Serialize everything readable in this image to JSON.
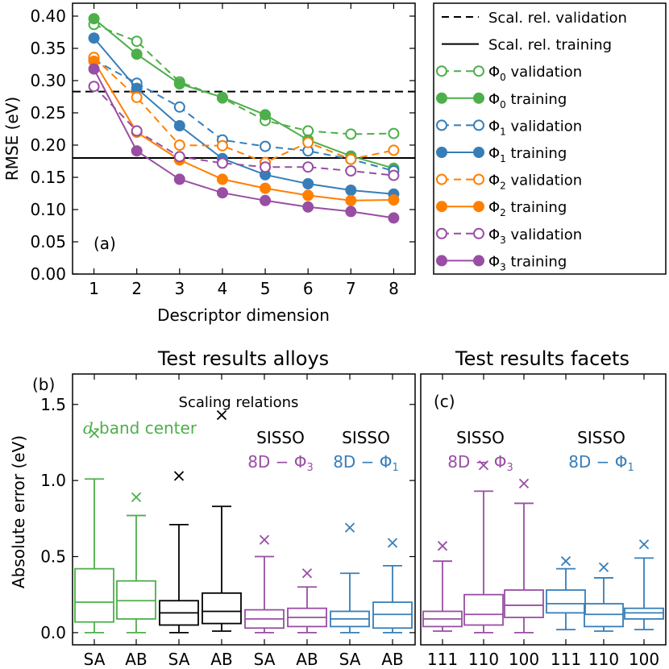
{
  "chart_data": [
    {
      "id": "a",
      "type": "line",
      "panel_label": "(a)",
      "xlabel": "Descriptor dimension",
      "ylabel": "RMSE (eV)",
      "x": [
        1,
        2,
        3,
        4,
        5,
        6,
        7,
        8
      ],
      "xlim": [
        0.5,
        8.5
      ],
      "ylim": [
        0.0,
        0.42
      ],
      "yticks": [
        "0.00",
        "0.05",
        "0.10",
        "0.15",
        "0.20",
        "0.25",
        "0.30",
        "0.35",
        "0.40"
      ],
      "xticks": [
        "1",
        "2",
        "3",
        "4",
        "5",
        "6",
        "7",
        "8"
      ],
      "reference_lines": [
        {
          "name": "Scal. rel. validation",
          "value": 0.283,
          "style": "dashed"
        },
        {
          "name": "Scal. rel. training",
          "value": 0.18,
          "style": "solid"
        }
      ],
      "series": [
        {
          "name": "Φ0 validation",
          "sym": "Φ",
          "sub": "0",
          "rest": " validation",
          "color": "#4daf4a",
          "style": "dashed",
          "marker": "open",
          "values": [
            0.387,
            0.361,
            0.298,
            0.273,
            0.238,
            0.222,
            0.217,
            0.218
          ]
        },
        {
          "name": "Φ0 training",
          "sym": "Φ",
          "sub": "0",
          "rest": " training",
          "color": "#4daf4a",
          "style": "solid",
          "marker": "filled",
          "values": [
            0.396,
            0.341,
            0.295,
            0.274,
            0.247,
            0.208,
            0.183,
            0.164
          ]
        },
        {
          "name": "Φ1 validation",
          "sym": "Φ",
          "sub": "1",
          "rest": " validation",
          "color": "#377eb8",
          "style": "dashed",
          "marker": "open",
          "values": [
            0.332,
            0.296,
            0.259,
            0.208,
            0.198,
            0.191,
            0.178,
            0.16
          ]
        },
        {
          "name": "Φ1 training",
          "sym": "Φ",
          "sub": "1",
          "rest": " training",
          "color": "#377eb8",
          "style": "solid",
          "marker": "filled",
          "values": [
            0.366,
            0.288,
            0.23,
            0.179,
            0.154,
            0.14,
            0.13,
            0.124
          ]
        },
        {
          "name": "Φ2 validation",
          "sym": "Φ",
          "sub": "2",
          "rest": " validation",
          "color": "#ff7f00",
          "style": "dashed",
          "marker": "open",
          "values": [
            0.336,
            0.274,
            0.2,
            0.199,
            0.173,
            0.204,
            0.178,
            0.192
          ]
        },
        {
          "name": "Φ2 training",
          "sym": "Φ",
          "sub": "2",
          "rest": " training",
          "color": "#ff7f00",
          "style": "solid",
          "marker": "filled",
          "values": [
            0.33,
            0.22,
            0.177,
            0.147,
            0.133,
            0.122,
            0.114,
            0.115
          ]
        },
        {
          "name": "Φ3 validation",
          "sym": "Φ",
          "sub": "3",
          "rest": " validation",
          "color": "#984ea3",
          "style": "dashed",
          "marker": "open",
          "values": [
            0.291,
            0.222,
            0.182,
            0.172,
            0.166,
            0.166,
            0.16,
            0.153
          ]
        },
        {
          "name": "Φ3 training",
          "sym": "Φ",
          "sub": "3",
          "rest": " training",
          "color": "#984ea3",
          "style": "solid",
          "marker": "filled",
          "values": [
            0.318,
            0.191,
            0.147,
            0.126,
            0.114,
            0.104,
            0.097,
            0.087
          ]
        }
      ]
    },
    {
      "id": "b",
      "type": "box",
      "panel_label": "(b)",
      "title": "Test results alloys",
      "ylabel": "Absolute error (eV)",
      "ylim": [
        -0.08,
        1.7
      ],
      "yticks": [
        "0.0",
        "0.5",
        "1.0",
        "1.5"
      ],
      "annotations": {
        "scaling": "Scaling relations",
        "dband_d": "d",
        "dband_rest": "-band center",
        "sisso_phi3_title": "SISSO",
        "sisso_phi3_sym": "8D − Φ",
        "sisso_phi3_sub": "3",
        "sisso_phi1_title": "SISSO",
        "sisso_phi1_sym": "8D − Φ",
        "sisso_phi1_sub": "1"
      },
      "boxes": [
        {
          "label": "SA",
          "color": "#4daf4a",
          "wlo": 0.0,
          "q1": 0.07,
          "median": 0.2,
          "q3": 0.42,
          "whi": 1.01,
          "outlier": 1.31
        },
        {
          "label": "AB",
          "color": "#4daf4a",
          "wlo": 0.0,
          "q1": 0.09,
          "median": 0.21,
          "q3": 0.34,
          "whi": 0.77,
          "outlier": 0.89
        },
        {
          "label": "SA",
          "color": "#000000",
          "wlo": 0.0,
          "q1": 0.05,
          "median": 0.13,
          "q3": 0.21,
          "whi": 0.71,
          "outlier": 1.03
        },
        {
          "label": "AB",
          "color": "#000000",
          "wlo": 0.01,
          "q1": 0.06,
          "median": 0.14,
          "q3": 0.26,
          "whi": 0.83,
          "outlier": 1.43
        },
        {
          "label": "SA",
          "color": "#984ea3",
          "wlo": 0.0,
          "q1": 0.03,
          "median": 0.09,
          "q3": 0.15,
          "whi": 0.5,
          "outlier": 0.61
        },
        {
          "label": "AB",
          "color": "#984ea3",
          "wlo": 0.0,
          "q1": 0.04,
          "median": 0.1,
          "q3": 0.16,
          "whi": 0.3,
          "outlier": 0.39
        },
        {
          "label": "SA",
          "color": "#377eb8",
          "wlo": 0.0,
          "q1": 0.04,
          "median": 0.09,
          "q3": 0.14,
          "whi": 0.39,
          "outlier": 0.69
        },
        {
          "label": "AB",
          "color": "#377eb8",
          "wlo": 0.0,
          "q1": 0.03,
          "median": 0.12,
          "q3": 0.2,
          "whi": 0.44,
          "outlier": 0.59
        }
      ]
    },
    {
      "id": "c",
      "type": "box",
      "panel_label": "(c)",
      "title": "Test results facets",
      "ylim": [
        -0.08,
        1.7
      ],
      "annotations": {
        "sisso_phi3_title": "SISSO",
        "sisso_phi3_sym": "8D − Φ",
        "sisso_phi3_sub": "3",
        "sisso_phi1_title": "SISSO",
        "sisso_phi1_sym": "8D − Φ",
        "sisso_phi1_sub": "1"
      },
      "boxes": [
        {
          "label": "111",
          "color": "#984ea3",
          "wlo": 0.01,
          "q1": 0.04,
          "median": 0.09,
          "q3": 0.14,
          "whi": 0.47,
          "outlier": 0.57
        },
        {
          "label": "110",
          "color": "#984ea3",
          "wlo": 0.0,
          "q1": 0.05,
          "median": 0.12,
          "q3": 0.25,
          "whi": 0.93,
          "outlier": 1.1
        },
        {
          "label": "100",
          "color": "#984ea3",
          "wlo": 0.0,
          "q1": 0.1,
          "median": 0.18,
          "q3": 0.28,
          "whi": 0.85,
          "outlier": 0.98
        },
        {
          "label": "111",
          "color": "#377eb8",
          "wlo": 0.02,
          "q1": 0.13,
          "median": 0.19,
          "q3": 0.28,
          "whi": 0.42,
          "outlier": 0.47
        },
        {
          "label": "110",
          "color": "#377eb8",
          "wlo": 0.01,
          "q1": 0.04,
          "median": 0.12,
          "q3": 0.19,
          "whi": 0.36,
          "outlier": 0.43
        },
        {
          "label": "100",
          "color": "#377eb8",
          "wlo": 0.02,
          "q1": 0.09,
          "median": 0.13,
          "q3": 0.16,
          "whi": 0.49,
          "outlier": 0.58
        }
      ]
    }
  ]
}
